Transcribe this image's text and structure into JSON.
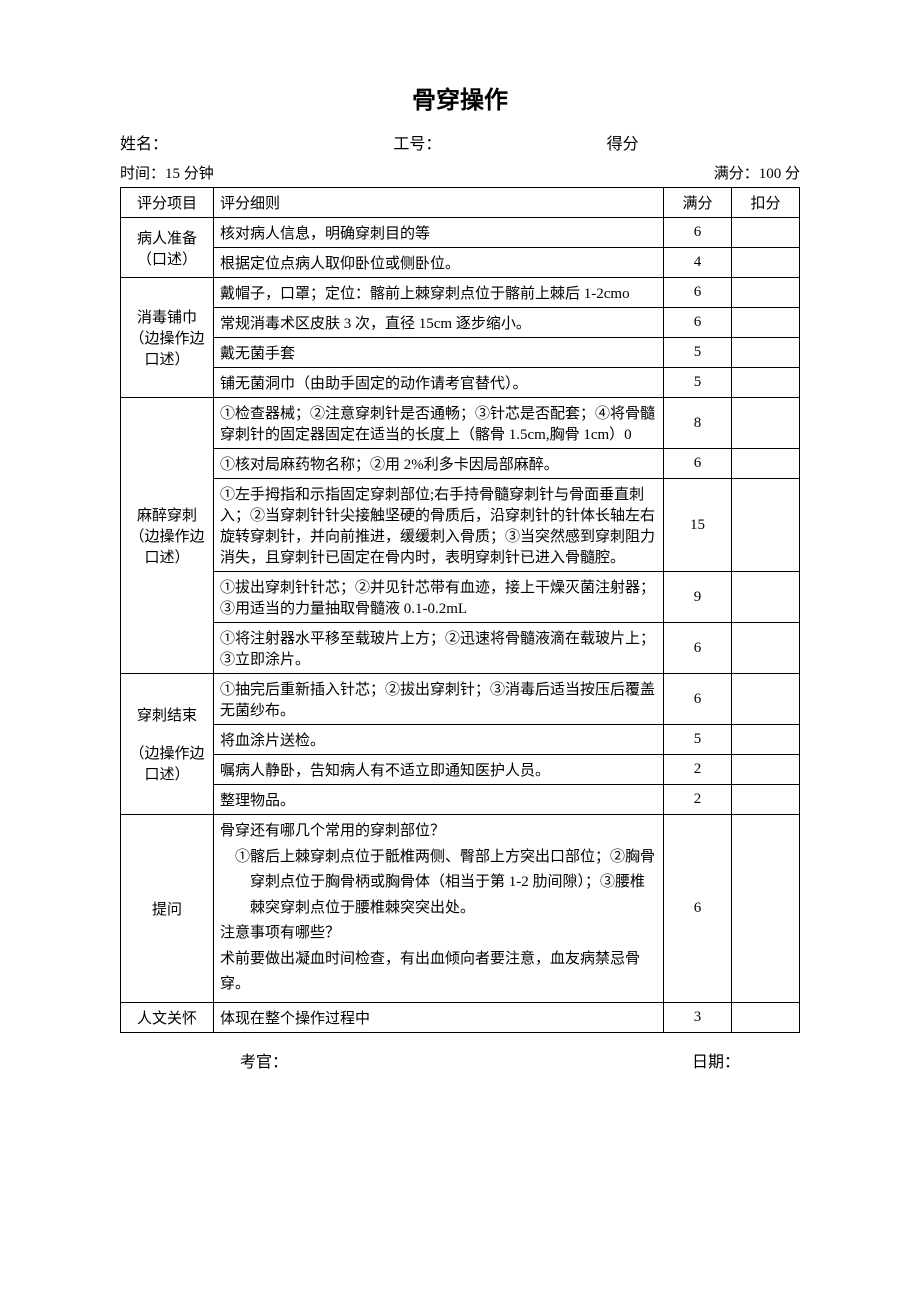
{
  "title": "骨穿操作",
  "header": {
    "name_label": "姓名：",
    "id_label": "工号：",
    "score_label": "得分"
  },
  "meta": {
    "time_label": "时间：15 分钟",
    "fullscore_label": "满分：100 分"
  },
  "table": {
    "headers": {
      "category": "评分项目",
      "detail": "评分细则",
      "fullscore": "满分",
      "deduct": "扣分"
    },
    "sections": [
      {
        "category": "病人准备（口述）",
        "rows": [
          {
            "detail": "核对病人信息，明确穿刺目的等",
            "score": "6"
          },
          {
            "detail": "根据定位点病人取仰卧位或侧卧位。",
            "score": "4"
          }
        ]
      },
      {
        "category": "消毒铺巾（边操作边口述）",
        "rows": [
          {
            "detail": "戴帽子，口罩；定位：髂前上棘穿刺点位于髂前上棘后 1-2cmo",
            "score": "6"
          },
          {
            "detail": "常规消毒术区皮肤 3 次，直径 15cm 逐步缩小。",
            "score": "6"
          },
          {
            "detail": "戴无菌手套",
            "score": "5"
          },
          {
            "detail": "铺无菌洞巾（由助手固定的动作请考官替代）。",
            "score": "5"
          }
        ]
      },
      {
        "category": "麻醉穿刺（边操作边口述）",
        "rows": [
          {
            "detail": "①检查器械；②注意穿刺针是否通畅；③针芯是否配套；④将骨髓穿刺针的固定器固定在适当的长度上（髂骨 1.5cm,胸骨 1cm）0",
            "score": "8"
          },
          {
            "detail": "①核对局麻药物名称；②用 2%利多卡因局部麻醉。",
            "score": "6"
          },
          {
            "detail": "①左手拇指和示指固定穿刺部位;右手持骨髓穿刺针与骨面垂直刺入；②当穿刺针针尖接触坚硬的骨质后，沿穿刺针的针体长轴左右旋转穿刺针，并向前推进，缓缓刺入骨质；③当突然感到穿刺阻力消失，且穿刺针已固定在骨内时，表明穿刺针已进入骨髓腔。",
            "score": "15"
          },
          {
            "detail": "①拔出穿刺针针芯；②并见针芯带有血迹，接上干燥灭菌注射器；③用适当的力量抽取骨髓液 0.1-0.2mL",
            "score": "9"
          },
          {
            "detail": "①将注射器水平移至载玻片上方；②迅速将骨髓液滴在载玻片上；③立即涂片。",
            "score": "6"
          }
        ]
      },
      {
        "category": "穿刺结束\n\n（边操作边口述）",
        "rows": [
          {
            "detail": "①抽完后重新插入针芯；②拔出穿刺针；③消毒后适当按压后覆盖无菌纱布。",
            "score": "6"
          },
          {
            "detail": "将血涂片送检。",
            "score": "5"
          },
          {
            "detail": "嘱病人静卧，告知病人有不适立即通知医护人员。",
            "score": "2"
          },
          {
            "detail": "整理物品。",
            "score": "2"
          }
        ]
      }
    ],
    "question_section": {
      "category": "提问",
      "q1": "骨穿还有哪几个常用的穿刺部位？",
      "a1_1": "①髂后上棘穿刺点位于骶椎两侧、臀部上方突出口部位；②胸骨穿刺点位于胸骨柄或胸骨体（相当于第 1-2 肋间隙）；③腰椎棘突穿刺点位于腰椎棘突突出处。",
      "q2": "注意事项有哪些？",
      "a2": "术前要做出凝血时间检查，有出血倾向者要注意，血友病禁忌骨穿。",
      "score": "6"
    },
    "humanistic": {
      "category": "人文关怀",
      "detail": "体现在整个操作过程中",
      "score": "3"
    }
  },
  "footer": {
    "examiner_label": "考官：",
    "date_label": "日期："
  }
}
